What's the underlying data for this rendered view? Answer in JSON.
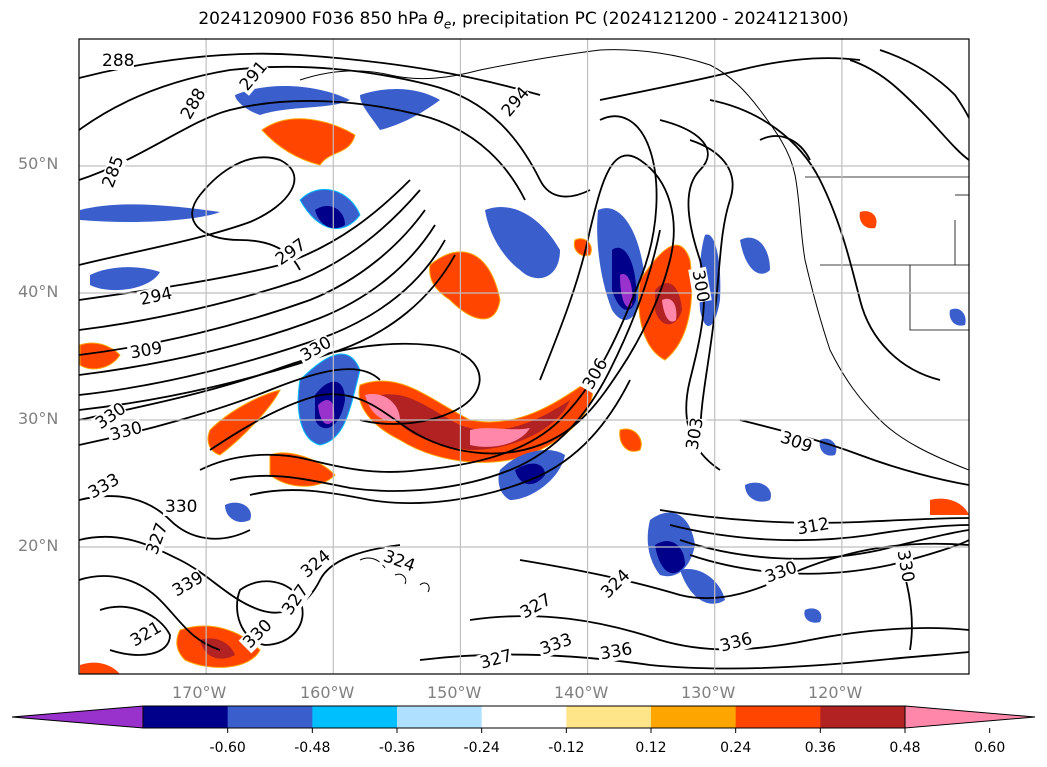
{
  "title": {
    "prefix": "2024120900 F036 850 hPa ",
    "theta": "θ",
    "theta_sub": "e",
    "suffix": ", precipitation PC (2024121200 - 2024121300)"
  },
  "axes": {
    "lat_labels": [
      "50°N",
      "40°N",
      "30°N",
      "20°N"
    ],
    "lon_labels": [
      "170°W",
      "160°W",
      "150°W",
      "140°W",
      "130°W",
      "120°W"
    ]
  },
  "map": {
    "lon_range": [
      -180,
      -110
    ],
    "lat_range": [
      10,
      60
    ],
    "grid_lons": [
      -170,
      -160,
      -150,
      -140,
      -130,
      -120
    ],
    "grid_lats": [
      20,
      30,
      40,
      50
    ]
  },
  "contour_labels": [
    "288",
    "291",
    "285",
    "288",
    "294",
    "297",
    "294",
    "309",
    "330",
    "330",
    "333",
    "330",
    "327",
    "330",
    "324",
    "306",
    "303",
    "300",
    "309",
    "312",
    "330",
    "330",
    "327",
    "324",
    "327",
    "333",
    "336",
    "336",
    "339",
    "321",
    "324",
    "327",
    "330"
  ],
  "colorbar": {
    "ticks": [
      "-0.60",
      "-0.48",
      "-0.36",
      "-0.24",
      "-0.12",
      "0.12",
      "0.24",
      "0.36",
      "0.48",
      "0.60"
    ],
    "colors": [
      "#9932cc",
      "#00008b",
      "#3a5fcd",
      "#00bfff",
      "#b0e0ff",
      "#ffffff",
      "#ffe58a",
      "#ffa500",
      "#ff4500",
      "#b22222",
      "#ff88aa"
    ],
    "low_extend_color": "#9932cc",
    "high_extend_color": "#ff88aa"
  }
}
